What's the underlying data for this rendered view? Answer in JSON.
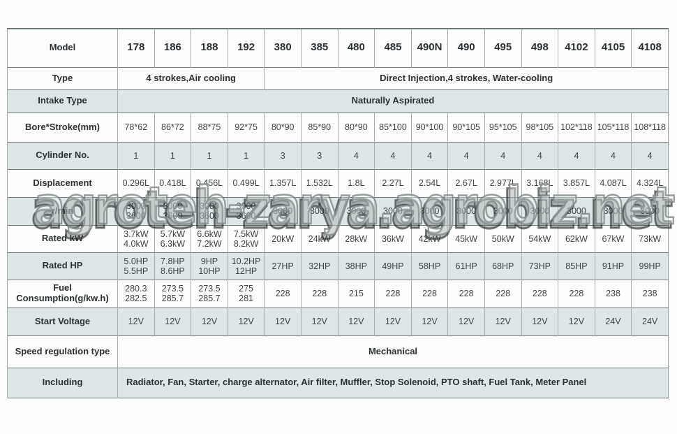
{
  "watermark": "agroteh-zarya.agrobiz.net",
  "colors": {
    "row_alt_bg": "#dde7e7",
    "border_dark": "#6e7878",
    "border_light": "#a5adad",
    "label_text": "#2b3033",
    "value_text": "#3e4346"
  },
  "table": {
    "columns": [
      "178",
      "186",
      "188",
      "192",
      "380",
      "385",
      "480",
      "485",
      "490N",
      "490",
      "495",
      "498",
      "4102",
      "4105",
      "4108"
    ],
    "rows": [
      {
        "label": "Model",
        "type": "model-header"
      },
      {
        "label": "Type",
        "spans": [
          {
            "text": "4 strokes,Air cooling",
            "cols": 4
          },
          {
            "text": "Direct Injection,4 strokes, Water-cooling",
            "cols": 11
          }
        ]
      },
      {
        "label": "Intake Type",
        "spans": [
          {
            "text": "Naturally Aspirated",
            "cols": 15
          }
        ]
      },
      {
        "label": "Bore*Stroke(mm)",
        "cells": [
          "78*62",
          "86*72",
          "88*75",
          "92*75",
          "80*90",
          "85*90",
          "80*90",
          "85*100",
          "90*100",
          "90*105",
          "95*105",
          "98*105",
          "102*118",
          "105*118",
          "108*118"
        ]
      },
      {
        "label": "Cylinder No.",
        "cells": [
          "1",
          "1",
          "1",
          "1",
          "3",
          "3",
          "4",
          "4",
          "4",
          "4",
          "4",
          "4",
          "4",
          "4",
          "4"
        ]
      },
      {
        "label": "Displacement",
        "cells": [
          "0.296L",
          "0.418L",
          "0.456L",
          "0.499L",
          "1.357L",
          "1.532L",
          "1.8L",
          "2.27L",
          "2.54L",
          "2.67L",
          "2.977L",
          "3.168L",
          "3.857L",
          "4.087L",
          "4.324L"
        ]
      },
      {
        "label": "r/min",
        "cells": [
          "3000\n3600",
          "3000\n3600",
          "3000\n3600",
          "3000\n3600",
          "3000",
          "3000",
          "3000",
          "3000",
          "3000",
          "3000",
          "3000",
          "3000",
          "3000",
          "3000",
          "3000"
        ]
      },
      {
        "label": "Rated kW",
        "cells": [
          "3.7kW\n4.0kW",
          "5.7kW\n6.3kW",
          "6.6kW\n7.2kW",
          "7.5kW\n8.2kW",
          "20kW",
          "24kW",
          "28kW",
          "36kW",
          "42kW",
          "45kW",
          "50kW",
          "54kW",
          "62kW",
          "67kW",
          "73kW"
        ]
      },
      {
        "label": "Rated HP",
        "cells": [
          "5.0HP\n5.5HP",
          "7.8HP\n8.6HP",
          "9HP\n10HP",
          "10.2HP\n12HP",
          "27HP",
          "32HP",
          "38HP",
          "49HP",
          "58HP",
          "61HP",
          "68HP",
          "73HP",
          "85HP",
          "91HP",
          "99HP"
        ]
      },
      {
        "label": "Fuel Consumption(g/kw.h)",
        "cells": [
          "280.3\n282.5",
          "273.5\n285.7",
          "273.5\n285.7",
          "275\n281",
          "228",
          "228",
          "215",
          "228",
          "228",
          "228",
          "228",
          "228",
          "228",
          "238",
          "238"
        ]
      },
      {
        "label": "Start Voltage",
        "cells": [
          "12V",
          "12V",
          "12V",
          "12V",
          "12V",
          "12V",
          "12V",
          "12V",
          "12V",
          "12V",
          "12V",
          "12V",
          "12V",
          "24V",
          "24V"
        ]
      },
      {
        "label": "Speed regulation type",
        "spans": [
          {
            "text": "Mechanical",
            "cols": 15
          }
        ]
      },
      {
        "label": "Including",
        "spans": [
          {
            "text": "Radiator, Fan, Starter, charge alternator, Air filter, Muffler, Stop Solenoid, PTO shaft, Fuel Tank, Meter Panel",
            "cols": 15,
            "align": "left"
          }
        ]
      }
    ]
  }
}
